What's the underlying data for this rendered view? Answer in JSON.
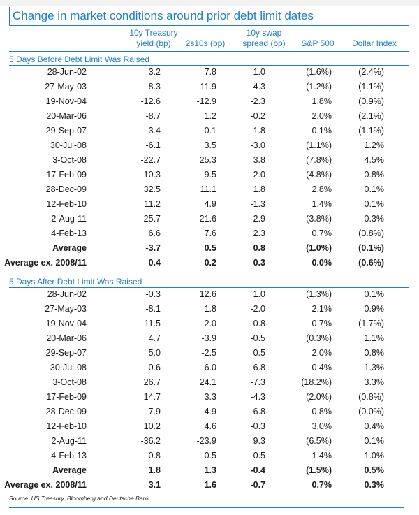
{
  "title": "Change in market conditions around prior debt limit dates",
  "columns": {
    "c1_line1": "10y Treasury",
    "c1_line2": "yield (bp)",
    "c2": "2s10s (bp)",
    "c3_line1": "10y swap",
    "c3_line2": "spread (bp)",
    "c4": "S&P 500",
    "c5": "Dollar Index"
  },
  "sections": [
    {
      "label": "5 Days Before Debt Limit Was Raised",
      "rows": [
        [
          "28-Jun-02",
          "3.2",
          "7.8",
          "1.0",
          "(1.6%)",
          "(2.4%)"
        ],
        [
          "27-May-03",
          "-8.3",
          "-11.9",
          "4.3",
          "(1.2%)",
          "(1.1%)"
        ],
        [
          "19-Nov-04",
          "-12.6",
          "-12.9",
          "-2.3",
          "1.8%",
          "(0.9%)"
        ],
        [
          "20-Mar-06",
          "-8.7",
          "1.2",
          "-0.2",
          "2.0%",
          "(2.1%)"
        ],
        [
          "29-Sep-07",
          "-3.4",
          "0.1",
          "-1.8",
          "0.1%",
          "(1.1%)"
        ],
        [
          "30-Jul-08",
          "-6.1",
          "3.5",
          "-3.0",
          "(1.1%)",
          "1.2%"
        ],
        [
          "3-Oct-08",
          "-22.7",
          "25.3",
          "3.8",
          "(7.8%)",
          "4.5%"
        ],
        [
          "17-Feb-09",
          "-10.3",
          "-9.5",
          "2.0",
          "(4.8%)",
          "0.8%"
        ],
        [
          "28-Dec-09",
          "32.5",
          "11.1",
          "1.8",
          "2.8%",
          "0.1%"
        ],
        [
          "12-Feb-10",
          "11.2",
          "4.9",
          "-1.3",
          "1.4%",
          "0.1%"
        ],
        [
          "2-Aug-11",
          "-25.7",
          "-21.6",
          "2.9",
          "(3.8%)",
          "0.3%"
        ],
        [
          "4-Feb-13",
          "6.6",
          "7.6",
          "2.3",
          "0.7%",
          "(0.8%)"
        ]
      ],
      "summary": [
        [
          "Average",
          "-3.7",
          "0.5",
          "0.8",
          "(1.0%)",
          "(0.1%)"
        ],
        [
          "Average ex. 2008/11",
          "0.4",
          "0.2",
          "0.3",
          "0.0%",
          "(0.6%)"
        ]
      ]
    },
    {
      "label": "5 Days After Debt Limit Was Raised",
      "rows": [
        [
          "28-Jun-02",
          "-0.3",
          "12.6",
          "1.0",
          "(1.3%)",
          "0.1%"
        ],
        [
          "27-May-03",
          "-8.1",
          "1.8",
          "-2.0",
          "2.1%",
          "0.9%"
        ],
        [
          "19-Nov-04",
          "11.5",
          "-2.0",
          "-0.8",
          "0.7%",
          "(1.7%)"
        ],
        [
          "20-Mar-06",
          "4.7",
          "-3.9",
          "-0.5",
          "(0.3%)",
          "1.1%"
        ],
        [
          "29-Sep-07",
          "5.0",
          "-2.5",
          "0.5",
          "2.0%",
          "0.8%"
        ],
        [
          "30-Jul-08",
          "0.6",
          "6.0",
          "6.8",
          "0.4%",
          "1.3%"
        ],
        [
          "3-Oct-08",
          "26.7",
          "24.1",
          "-7.3",
          "(18.2%)",
          "3.3%"
        ],
        [
          "17-Feb-09",
          "14.7",
          "3.3",
          "-4.3",
          "(2.0%)",
          "(0.8%)"
        ],
        [
          "28-Dec-09",
          "-7.9",
          "-4.9",
          "-6.8",
          "0.8%",
          "(0.0%)"
        ],
        [
          "12-Feb-10",
          "10.2",
          "4.6",
          "-0.3",
          "3.0%",
          "0.4%"
        ],
        [
          "2-Aug-11",
          "-36.2",
          "-23.9",
          "9.3",
          "(6.5%)",
          "0.1%"
        ],
        [
          "4-Feb-13",
          "0.8",
          "0.5",
          "-0.5",
          "1.4%",
          "1.0%"
        ]
      ],
      "summary": [
        [
          "Average",
          "1.8",
          "1.3",
          "-0.4",
          "(1.5%)",
          "0.5%"
        ],
        [
          "Average ex. 2008/11",
          "3.1",
          "1.6",
          "-0.7",
          "0.7%",
          "0.3%"
        ]
      ]
    }
  ],
  "source": "Source: US Treasury, Bloomberg and Deutsche Bank"
}
